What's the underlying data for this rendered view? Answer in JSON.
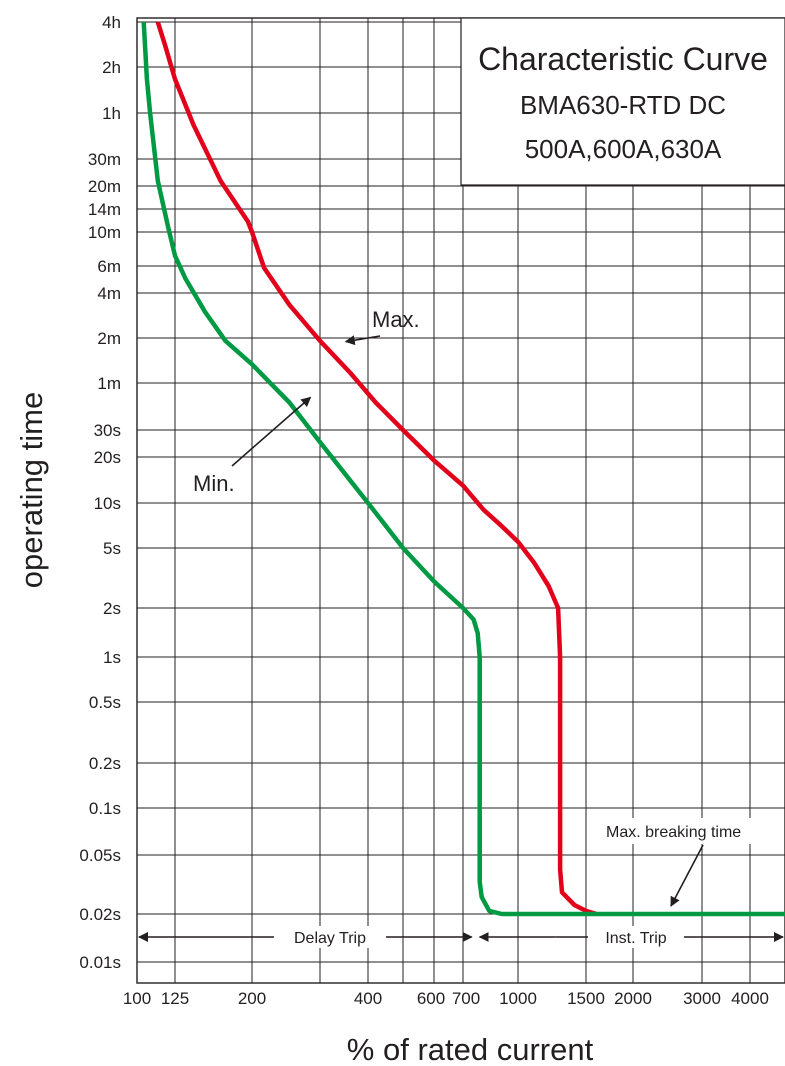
{
  "chart_data": {
    "type": "line",
    "title": "Characteristic Curve",
    "subtitle_lines": [
      "BMA630-RTD DC",
      "500A,600A,630A"
    ],
    "xlabel": "% of rated current",
    "ylabel": "operating time",
    "x_scale": "log",
    "y_scale": "log",
    "xlim": [
      100,
      5000
    ],
    "ylim_seconds": [
      0.008,
      18000
    ],
    "grid": true,
    "x_ticks": [
      {
        "label": "100",
        "value": 100
      },
      {
        "label": "125",
        "value": 125
      },
      {
        "label": "200",
        "value": 200
      },
      {
        "label": "400",
        "value": 400
      },
      {
        "label": "600",
        "value": 600
      },
      {
        "label": "700",
        "value": 700
      },
      {
        "label": "1000",
        "value": 1000
      },
      {
        "label": "1500",
        "value": 1500
      },
      {
        "label": "2000",
        "value": 2000
      },
      {
        "label": "3000",
        "value": 3000
      },
      {
        "label": "4000",
        "value": 4000
      }
    ],
    "x_gridlines": [
      100,
      125,
      200,
      300,
      400,
      500,
      600,
      700,
      1000,
      1500,
      2000,
      3000,
      4000,
      5000
    ],
    "y_ticks": [
      {
        "label": "4h",
        "value": 14400
      },
      {
        "label": "2h",
        "value": 7200
      },
      {
        "label": "1h",
        "value": 3600
      },
      {
        "label": "30m",
        "value": 1800
      },
      {
        "label": "20m",
        "value": 1200
      },
      {
        "label": "14m",
        "value": 840
      },
      {
        "label": "10m",
        "value": 600
      },
      {
        "label": "6m",
        "value": 360
      },
      {
        "label": "4m",
        "value": 240
      },
      {
        "label": "2m",
        "value": 120
      },
      {
        "label": "1m",
        "value": 60
      },
      {
        "label": "30s",
        "value": 30
      },
      {
        "label": "20s",
        "value": 20
      },
      {
        "label": "10s",
        "value": 10
      },
      {
        "label": "5s",
        "value": 5
      },
      {
        "label": "2s",
        "value": 2
      },
      {
        "label": "1s",
        "value": 1
      },
      {
        "label": "0.5s",
        "value": 0.5
      },
      {
        "label": "0.2s",
        "value": 0.2
      },
      {
        "label": "0.1s",
        "value": 0.1
      },
      {
        "label": "0.05s",
        "value": 0.05
      },
      {
        "label": "0.02s",
        "value": 0.02
      },
      {
        "label": "0.01s",
        "value": 0.01
      }
    ],
    "series": [
      {
        "name": "Max.",
        "color": "#e3001b",
        "x": [
          113,
          118,
          125,
          140,
          165,
          195,
          200,
          215,
          250,
          300,
          360,
          420,
          500,
          600,
          700,
          800,
          900,
          1000,
          1100,
          1200,
          1270,
          1285,
          1285,
          1300,
          1400,
          1500,
          1600
        ],
        "y": [
          14400,
          10000,
          6000,
          3000,
          1300,
          700,
          600,
          350,
          200,
          115,
          70,
          45,
          30,
          19,
          13,
          9,
          7,
          5.5,
          4,
          2.8,
          2,
          1,
          0.04,
          0.028,
          0.023,
          0.021,
          0.02
        ]
      },
      {
        "name": "Min.",
        "color": "#009a44",
        "x": [
          104,
          106,
          108,
          113,
          120,
          125,
          133,
          150,
          170,
          200,
          250,
          300,
          400,
          500,
          600,
          700,
          750,
          770,
          780,
          780,
          790,
          830,
          900,
          1000,
          5000
        ],
        "y": [
          14400,
          6000,
          3600,
          1300,
          650,
          420,
          300,
          180,
          115,
          80,
          45,
          25,
          10,
          5,
          3,
          2,
          1.7,
          1.4,
          1,
          0.033,
          0.026,
          0.021,
          0.02,
          0.02,
          0.02
        ]
      }
    ],
    "annotations": [
      {
        "text": "Max.",
        "points_to_x": 350,
        "points_to_y": 110
      },
      {
        "text": "Min.",
        "points_to_x": 280,
        "points_to_y": 50
      },
      {
        "text": "Max. breaking time",
        "points_to_x": 2500,
        "points_to_y": 0.02
      },
      {
        "text": "Delay Trip",
        "x_from": 100,
        "x_to": 760
      },
      {
        "text": "Inst. Trip",
        "x_from": 760,
        "x_to": 5000
      }
    ]
  }
}
